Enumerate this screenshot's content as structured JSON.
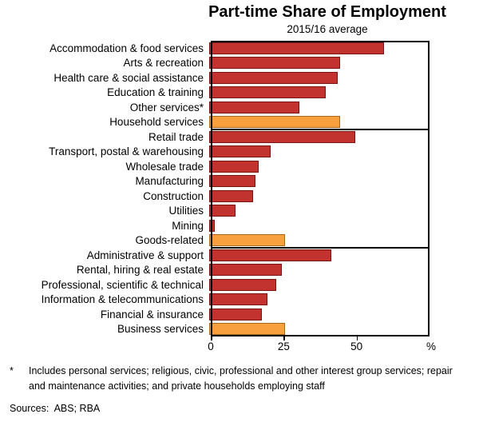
{
  "title": "Part-time Share of Employment",
  "subtitle": "2015/16 average",
  "footnote": {
    "marker": "*",
    "text": "Includes personal services; religious, civic, professional and other interest group services; repair and maintenance activities; and private households employing staff"
  },
  "sources": "Sources:  ABS; RBA",
  "chart_data": {
    "type": "bar",
    "orientation": "horizontal",
    "title": "Part-time Share of Employment",
    "subtitle": "2015/16 average",
    "xlabel": "%",
    "x_unit": "%",
    "xlim": [
      0,
      75
    ],
    "xticks": [
      0,
      25,
      50
    ],
    "grid": false,
    "colors": {
      "industry_fill": "#c2332f",
      "industry_border": "#7a1512",
      "aggregate_fill": "#f7a03d",
      "aggregate_border": "#a8661a"
    },
    "groups": [
      {
        "name": "Household services group",
        "rows": [
          {
            "label": "Accommodation & food services",
            "value": 60,
            "kind": "industry"
          },
          {
            "label": "Arts & recreation",
            "value": 45,
            "kind": "industry"
          },
          {
            "label": "Health care & social assistance",
            "value": 44,
            "kind": "industry"
          },
          {
            "label": "Education & training",
            "value": 40,
            "kind": "industry"
          },
          {
            "label": "Other services*",
            "value": 31,
            "kind": "industry"
          },
          {
            "label": "Household services",
            "value": 45,
            "kind": "aggregate"
          }
        ]
      },
      {
        "name": "Goods-related group",
        "rows": [
          {
            "label": "Retail trade",
            "value": 50,
            "kind": "industry"
          },
          {
            "label": "Transport, postal & warehousing",
            "value": 21,
            "kind": "industry"
          },
          {
            "label": "Wholesale trade",
            "value": 17,
            "kind": "industry"
          },
          {
            "label": "Manufacturing",
            "value": 16,
            "kind": "industry"
          },
          {
            "label": "Construction",
            "value": 15,
            "kind": "industry"
          },
          {
            "label": "Utilities",
            "value": 9,
            "kind": "industry"
          },
          {
            "label": "Mining",
            "value": 2,
            "kind": "industry"
          },
          {
            "label": "Goods-related",
            "value": 26,
            "kind": "aggregate"
          }
        ]
      },
      {
        "name": "Business services group",
        "rows": [
          {
            "label": "Administrative & support",
            "value": 42,
            "kind": "industry"
          },
          {
            "label": "Rental, hiring & real estate",
            "value": 25,
            "kind": "industry"
          },
          {
            "label": "Professional, scientific & technical",
            "value": 23,
            "kind": "industry"
          },
          {
            "label": "Information & telecommunications",
            "value": 20,
            "kind": "industry"
          },
          {
            "label": "Financial & insurance",
            "value": 18,
            "kind": "industry"
          },
          {
            "label": "Business services",
            "value": 26,
            "kind": "aggregate"
          }
        ]
      }
    ]
  }
}
